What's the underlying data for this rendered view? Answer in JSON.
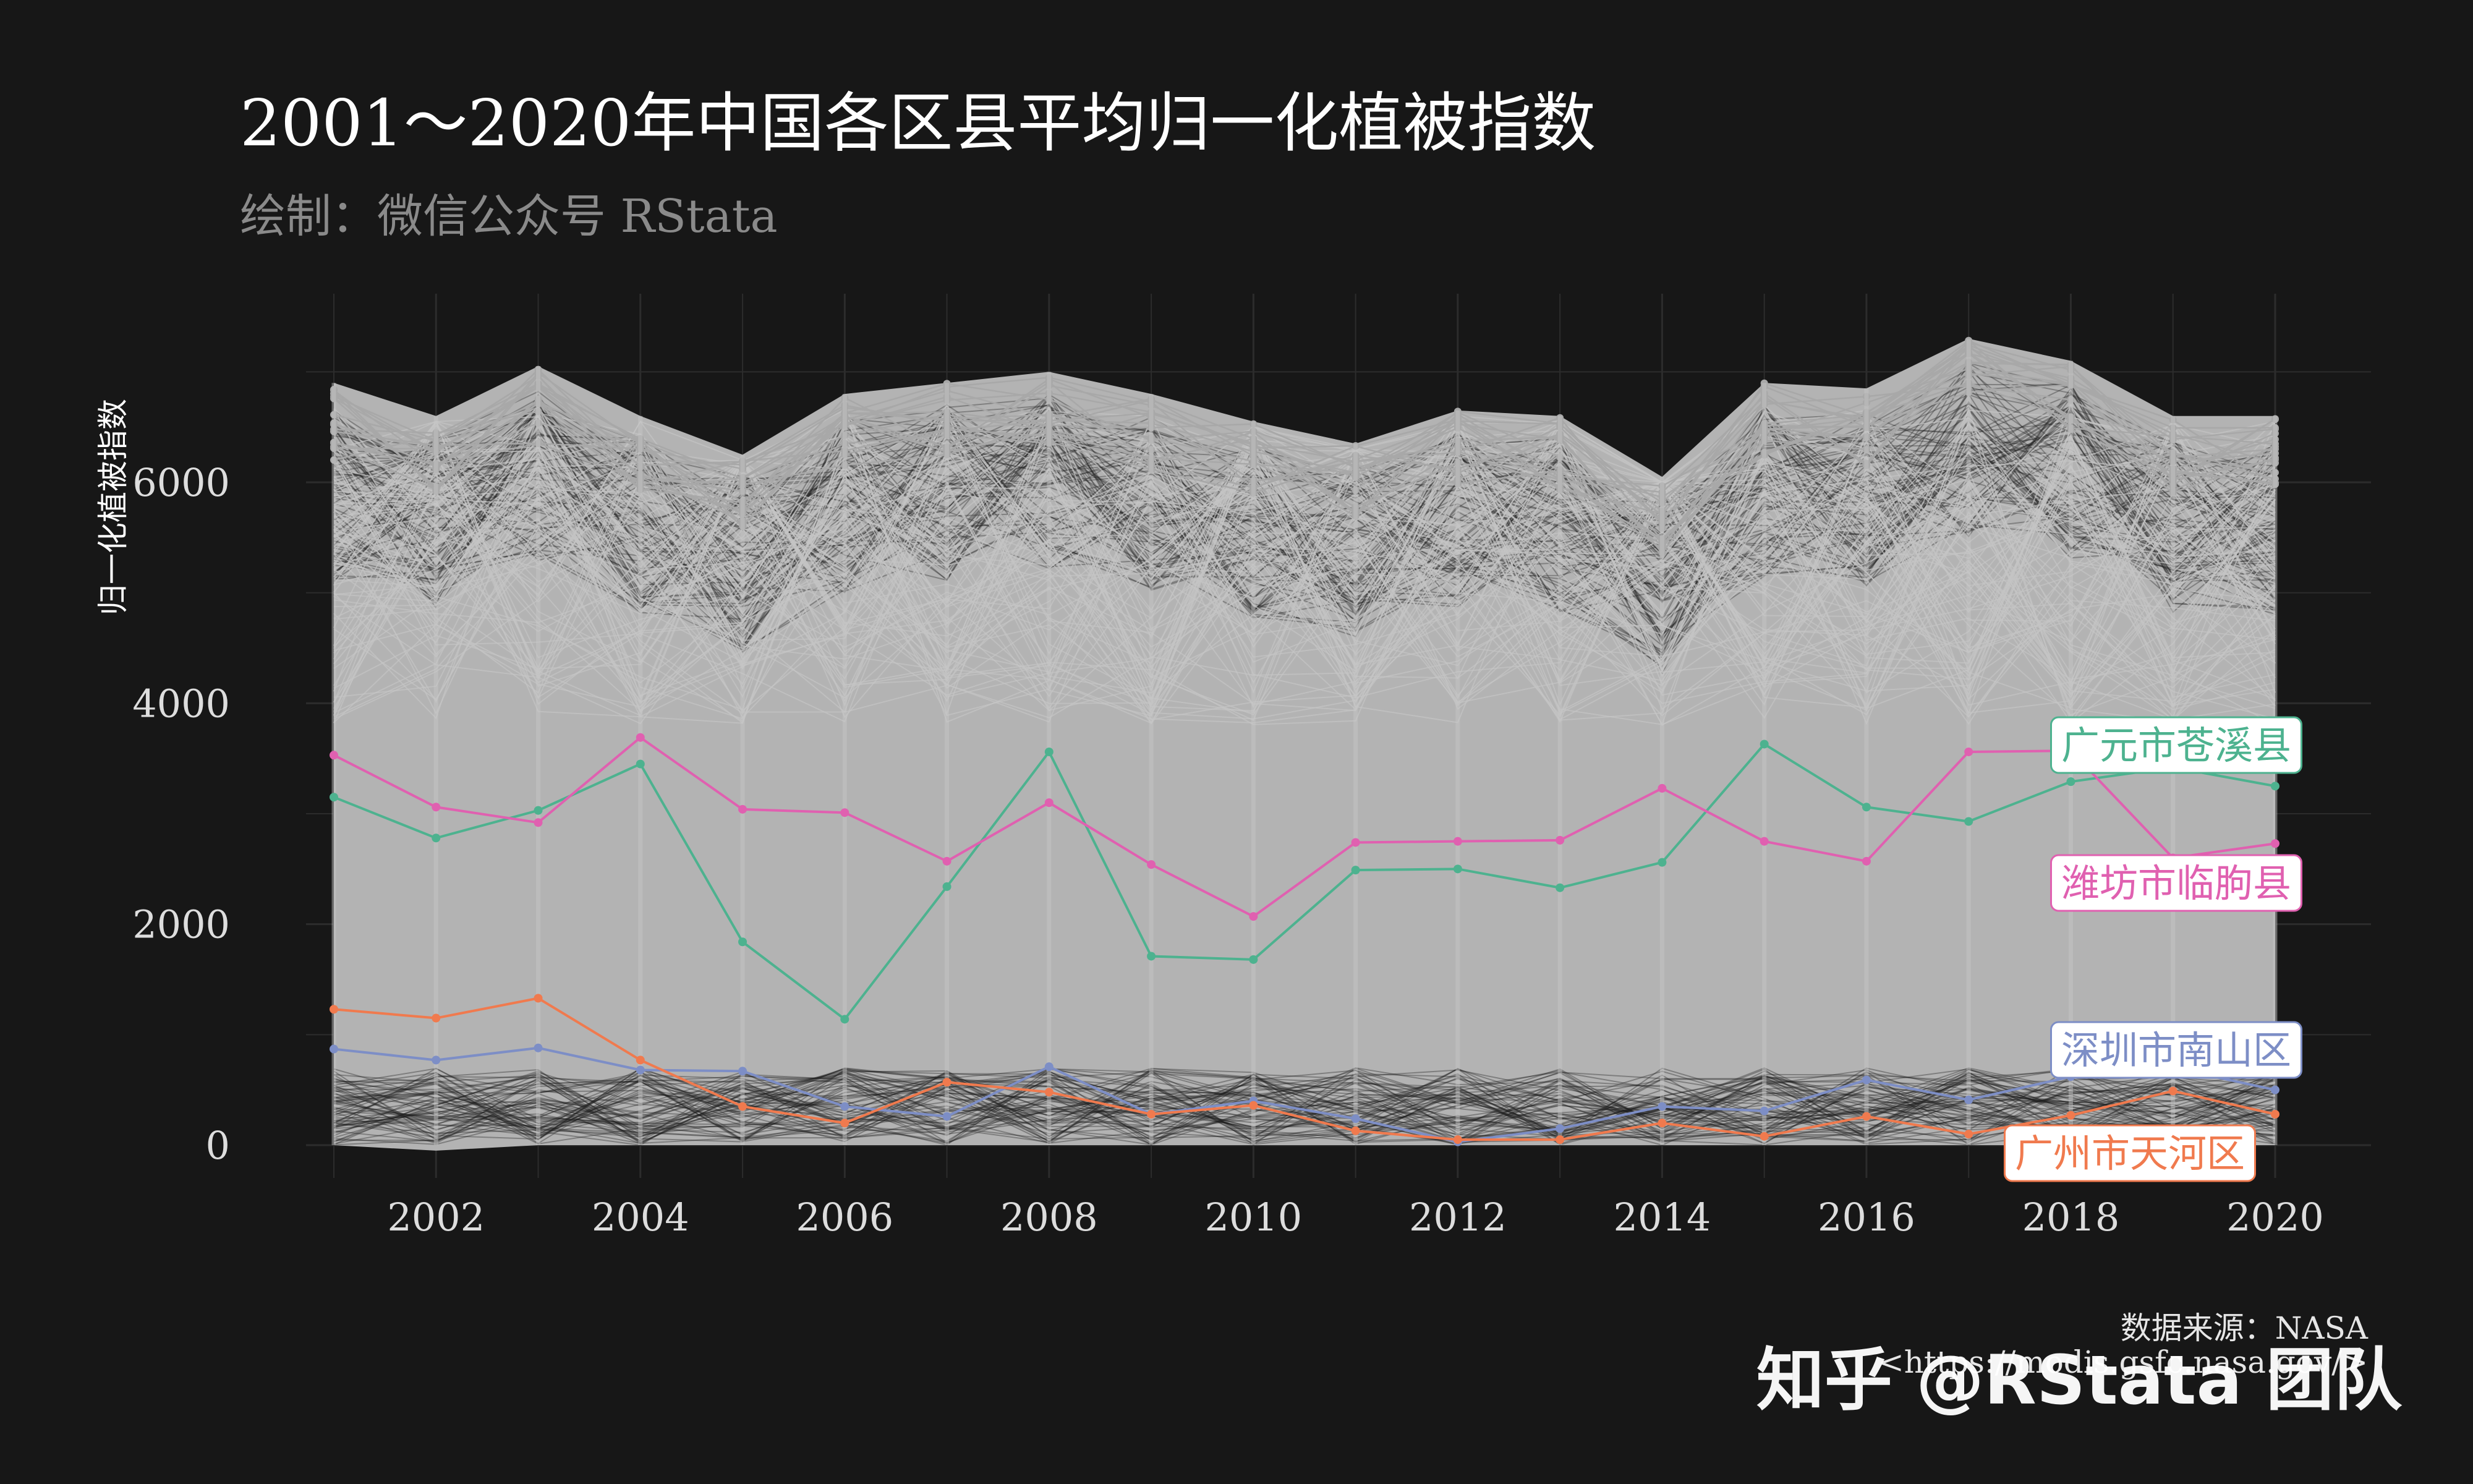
{
  "title": "2001～2020年中国各区县平均归一化植被指数",
  "subtitle": "绘制：微信公众号 RStata",
  "caption_line1": "数据来源：NASA",
  "caption_line2": "<https://modis.gsfc.nasa.gov/>",
  "watermark": "知乎 @RStata 团队",
  "colors": {
    "background": "#171717",
    "grid": "#2c2c2c",
    "background_lines": "#b3b3b3",
    "guangyuan": "#4db28f",
    "weifang": "#e060b0",
    "shenzhen": "#7d8ec6",
    "guangzhou": "#f07a4e"
  },
  "chart_data": {
    "type": "line",
    "title": "2001～2020年中国各区县平均归一化植被指数",
    "subtitle": "绘制：微信公众号 RStata",
    "xlabel": "",
    "ylabel": "归一化植被指数",
    "x": [
      2001,
      2002,
      2003,
      2004,
      2005,
      2006,
      2007,
      2008,
      2009,
      2010,
      2011,
      2012,
      2013,
      2014,
      2015,
      2016,
      2017,
      2018,
      2019,
      2020
    ],
    "x_ticks": [
      "2002",
      "2004",
      "2006",
      "2008",
      "2010",
      "2012",
      "2014",
      "2016",
      "2018",
      "2020"
    ],
    "y_ticks": [
      "0",
      "2000",
      "4000",
      "6000"
    ],
    "xlim": [
      2000,
      2021
    ],
    "ylim": [
      -100,
      7500
    ],
    "grid": true,
    "background_band": {
      "upper": [
        6900,
        6600,
        7050,
        6600,
        6250,
        6800,
        6900,
        7000,
        6800,
        6550,
        6350,
        6650,
        6600,
        6050,
        6900,
        6850,
        7300,
        7100,
        6600,
        6600
      ],
      "lower": [
        0,
        -50,
        0,
        0,
        0,
        0,
        0,
        0,
        0,
        0,
        0,
        0,
        0,
        0,
        0,
        0,
        0,
        0,
        0,
        0
      ]
    },
    "series": [
      {
        "name": "广元市苍溪县",
        "color": "#4db28f",
        "values": [
          3150,
          2780,
          3030,
          3450,
          1840,
          1140,
          2340,
          3560,
          1710,
          1680,
          2490,
          2500,
          2330,
          2560,
          3630,
          3060,
          2930,
          3290,
          3420,
          3250
        ]
      },
      {
        "name": "潍坊市临朐县",
        "color": "#e060b0",
        "values": [
          3530,
          3060,
          2920,
          3690,
          3040,
          3010,
          2570,
          3100,
          2540,
          2070,
          2740,
          2750,
          2760,
          3230,
          2750,
          2570,
          3560,
          3570,
          2600,
          2730
        ]
      },
      {
        "name": "深圳市南山区",
        "color": "#7d8ec6",
        "values": [
          870,
          770,
          880,
          680,
          670,
          350,
          260,
          710,
          280,
          400,
          240,
          30,
          150,
          350,
          310,
          590,
          410,
          620,
          700,
          500
        ]
      },
      {
        "name": "广州市天河区",
        "color": "#f07a4e",
        "values": [
          1230,
          1150,
          1330,
          770,
          350,
          200,
          570,
          480,
          280,
          360,
          130,
          50,
          50,
          200,
          80,
          260,
          100,
          270,
          490,
          280
        ]
      }
    ]
  }
}
